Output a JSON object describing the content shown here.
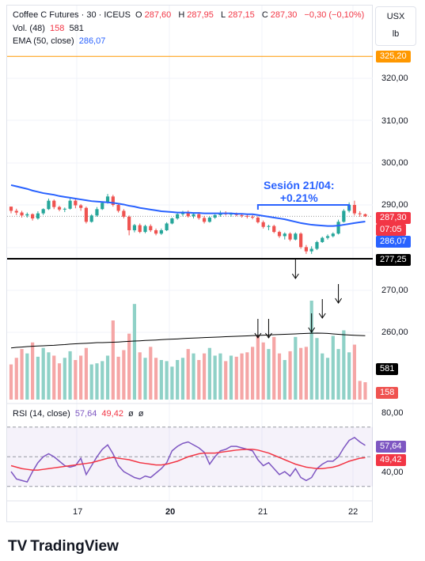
{
  "header": {
    "symbol": "Coffee C Futures · 30 · ICEUS",
    "ohlc": [
      {
        "label": "O",
        "value": "287,60"
      },
      {
        "label": "H",
        "value": "287,95"
      },
      {
        "label": "L",
        "value": "287,15"
      },
      {
        "label": "C",
        "value": "287,30"
      }
    ],
    "change": "−0,30 (−0,10%)",
    "volume_label": "Vol. (48)",
    "volume_a": "158",
    "volume_b": "581",
    "ema_label": "EMA (50, close)",
    "ema_value": "286,07"
  },
  "unit_selector": {
    "currency": "USX",
    "unit": "lb"
  },
  "tags": {
    "high_line": "325,20",
    "last_price": "287,30",
    "countdown": "07:05",
    "ema": "286,07",
    "support": "277,25",
    "vol_avg": "581",
    "vol_last": "158",
    "rsi_a": "57,64",
    "rsi_b": "49,42"
  },
  "annotation": {
    "line1": "Sesión 21/04:",
    "line2": "+0.21%"
  },
  "rsi_header": {
    "label": "RSI (14, close)",
    "value_a": "57,64",
    "value_b": "49,42",
    "sym_a": "ø",
    "sym_b": "ø"
  },
  "branding": {
    "logo_text": "TradingView"
  },
  "colors": {
    "up": "#26a69a",
    "down": "#ef5350",
    "ema": "#2962ff",
    "rsi": "#7e57c2",
    "rsi_ma": "#f23645",
    "support": "#000000",
    "high_line": "#ff9800"
  },
  "chart_data": {
    "type": "candlestick",
    "price_axis": {
      "ticks": [
        "320,00",
        "310,00",
        "300,00",
        "290,00",
        "270,00",
        "260,00"
      ],
      "ylim": [
        252,
        333
      ]
    },
    "x_ticks": [
      "17",
      "20",
      "21",
      "22"
    ],
    "candles": [
      [
        289.6,
        289.6,
        288.0,
        288.6
      ],
      [
        288.6,
        289.1,
        287.6,
        288.2
      ],
      [
        288.2,
        288.6,
        287.0,
        287.5
      ],
      [
        287.5,
        288.2,
        287.0,
        287.8
      ],
      [
        287.8,
        288.0,
        286.3,
        286.8
      ],
      [
        286.8,
        288.5,
        286.5,
        288.0
      ],
      [
        288.0,
        289.2,
        287.6,
        289.0
      ],
      [
        289.0,
        291.5,
        288.8,
        291.0
      ],
      [
        291.0,
        291.3,
        289.0,
        289.5
      ],
      [
        289.5,
        289.8,
        288.5,
        288.9
      ],
      [
        288.9,
        289.4,
        288.3,
        289.1
      ],
      [
        289.1,
        291.5,
        288.9,
        291.0
      ],
      [
        291.0,
        291.3,
        289.2,
        289.9
      ],
      [
        289.9,
        290.2,
        288.6,
        289.3
      ],
      [
        289.3,
        289.6,
        285.6,
        286.0
      ],
      [
        286.0,
        287.8,
        285.8,
        287.5
      ],
      [
        287.5,
        289.5,
        287.2,
        289.0
      ],
      [
        289.0,
        290.6,
        288.8,
        290.5
      ],
      [
        290.5,
        292.6,
        290.3,
        292.0
      ],
      [
        292.0,
        292.4,
        289.6,
        290.0
      ],
      [
        290.0,
        290.2,
        288.2,
        288.6
      ],
      [
        288.6,
        289.0,
        286.8,
        287.2
      ],
      [
        287.2,
        287.5,
        282.8,
        284.0
      ],
      [
        284.0,
        285.5,
        283.5,
        285.2
      ],
      [
        285.2,
        285.6,
        283.3,
        283.6
      ],
      [
        283.6,
        285.3,
        283.3,
        285.0
      ],
      [
        285.0,
        285.4,
        283.6,
        284.0
      ],
      [
        284.0,
        284.4,
        282.8,
        283.2
      ],
      [
        283.2,
        284.4,
        282.9,
        284.0
      ],
      [
        284.0,
        285.9,
        283.8,
        285.6
      ],
      [
        285.6,
        287.0,
        285.4,
        286.8
      ],
      [
        286.8,
        288.0,
        286.5,
        287.8
      ],
      [
        287.8,
        288.6,
        287.3,
        288.2
      ],
      [
        288.2,
        288.7,
        287.0,
        287.3
      ],
      [
        287.3,
        288.0,
        286.8,
        287.8
      ],
      [
        287.8,
        288.3,
        286.5,
        286.9
      ],
      [
        286.9,
        287.4,
        285.6,
        286.0
      ],
      [
        286.0,
        287.3,
        285.8,
        287.0
      ],
      [
        287.0,
        287.8,
        286.7,
        287.6
      ],
      [
        287.6,
        288.6,
        287.2,
        288.1
      ],
      [
        288.1,
        288.5,
        287.5,
        287.8
      ],
      [
        287.8,
        288.2,
        287.2,
        287.9
      ],
      [
        287.9,
        288.2,
        287.3,
        287.6
      ],
      [
        287.6,
        287.9,
        287.0,
        287.4
      ],
      [
        287.4,
        287.8,
        286.8,
        287.2
      ],
      [
        287.2,
        287.6,
        286.6,
        287.0
      ],
      [
        287.0,
        287.3,
        285.6,
        285.9
      ],
      [
        285.9,
        286.3,
        284.4,
        284.8
      ],
      [
        284.8,
        285.3,
        284.0,
        285.0
      ],
      [
        285.0,
        285.3,
        283.3,
        283.6
      ],
      [
        283.6,
        283.9,
        282.2,
        282.6
      ],
      [
        282.6,
        283.5,
        281.8,
        283.2
      ],
      [
        283.2,
        283.5,
        281.4,
        281.8
      ],
      [
        281.8,
        283.5,
        281.6,
        283.2
      ],
      [
        283.2,
        283.5,
        279.6,
        280.0
      ],
      [
        280.0,
        280.5,
        278.4,
        279.0
      ],
      [
        279.0,
        280.2,
        278.4,
        279.6
      ],
      [
        279.6,
        281.5,
        279.3,
        281.2
      ],
      [
        281.2,
        282.5,
        281.0,
        282.2
      ],
      [
        282.2,
        283.0,
        281.8,
        282.6
      ],
      [
        282.6,
        283.5,
        282.3,
        283.2
      ],
      [
        283.2,
        286.5,
        283.0,
        286.0
      ],
      [
        286.0,
        289.0,
        285.8,
        288.6
      ],
      [
        288.6,
        290.6,
        288.2,
        290.0
      ],
      [
        290.0,
        291.0,
        287.5,
        288.0
      ],
      [
        288.0,
        288.5,
        287.2,
        287.8
      ],
      [
        287.8,
        287.95,
        287.15,
        287.3
      ]
    ],
    "ema50": [
      294.7,
      294.4,
      294.1,
      293.8,
      293.4,
      293.1,
      292.8,
      292.6,
      292.4,
      292.1,
      291.9,
      291.7,
      291.5,
      291.3,
      291.1,
      290.9,
      290.8,
      290.7,
      290.6,
      290.5,
      290.3,
      290.1,
      289.8,
      289.6,
      289.3,
      289.1,
      288.9,
      288.7,
      288.5,
      288.4,
      288.3,
      288.2,
      288.2,
      288.2,
      288.1,
      288.1,
      288.0,
      288.0,
      288.0,
      288.0,
      288.0,
      288.0,
      287.9,
      287.9,
      287.8,
      287.8,
      287.6,
      287.4,
      287.2,
      287.0,
      286.8,
      286.6,
      286.3,
      286.0,
      285.7,
      285.5,
      285.3,
      285.2,
      285.1,
      285.0,
      285.0,
      285.1,
      285.3,
      285.5,
      285.7,
      285.9,
      286.07
    ],
    "volume": [
      320,
      380,
      460,
      420,
      520,
      390,
      470,
      430,
      400,
      330,
      380,
      440,
      360,
      400,
      470,
      320,
      330,
      350,
      400,
      720,
      390,
      450,
      600,
      870,
      430,
      380,
      480,
      380,
      360,
      350,
      300,
      360,
      380,
      460,
      420,
      360,
      420,
      470,
      400,
      420,
      350,
      400,
      390,
      420,
      430,
      480,
      580,
      520,
      460,
      570,
      420,
      360,
      440,
      570,
      470,
      480,
      900,
      560,
      420,
      380,
      580,
      460,
      630,
      430,
      500,
      170,
      158
    ],
    "volume_ma": [
      470,
      475,
      478,
      482,
      485,
      488,
      490,
      492,
      494,
      498,
      500,
      505,
      508,
      510,
      512,
      515,
      518,
      518,
      520,
      522,
      524,
      527,
      530,
      533,
      535,
      538,
      540,
      542,
      545,
      548,
      550,
      552,
      555,
      558,
      560,
      562,
      564,
      566,
      568,
      570,
      572,
      574,
      576,
      578,
      580,
      582,
      584,
      586,
      588,
      590,
      592,
      594,
      596,
      598,
      600,
      602,
      604,
      605,
      604,
      602,
      598,
      594,
      590,
      588,
      585,
      583,
      581
    ],
    "rsi": [
      40,
      35,
      34,
      33,
      40,
      46,
      50,
      52,
      50,
      47,
      44,
      43,
      44,
      49,
      38,
      44,
      50,
      55,
      58,
      52,
      44,
      40,
      38,
      36,
      35,
      37,
      36,
      39,
      42,
      46,
      54,
      57,
      59,
      60,
      58,
      56,
      53,
      45,
      50,
      54,
      55,
      57,
      57,
      56,
      55,
      54,
      48,
      44,
      46,
      42,
      38,
      40,
      37,
      42,
      36,
      34,
      36,
      42,
      45,
      47,
      47,
      50,
      56,
      61,
      63,
      60,
      57.64
    ],
    "rsi_ma": [
      44,
      43,
      42,
      41.5,
      41,
      41,
      41.5,
      42,
      42.5,
      43,
      43.5,
      44,
      44.5,
      45,
      45.5,
      46,
      47,
      48,
      49,
      49.5,
      49,
      48.5,
      48,
      47,
      46,
      45.5,
      45,
      44.5,
      44.5,
      45,
      46,
      47,
      48.5,
      50,
      51,
      52,
      52.5,
      52.5,
      52.5,
      53,
      53.5,
      54,
      54.5,
      54.8,
      55,
      55,
      54.5,
      53.5,
      52.5,
      51,
      49.5,
      48,
      46.5,
      45,
      44,
      43,
      42.5,
      42,
      42,
      42.5,
      43,
      44,
      45.5,
      47,
      48,
      49,
      49.42
    ],
    "support": 277.25,
    "high_line": 325.2,
    "arrows_at": [
      31,
      33,
      38,
      41,
      43,
      46
    ]
  }
}
